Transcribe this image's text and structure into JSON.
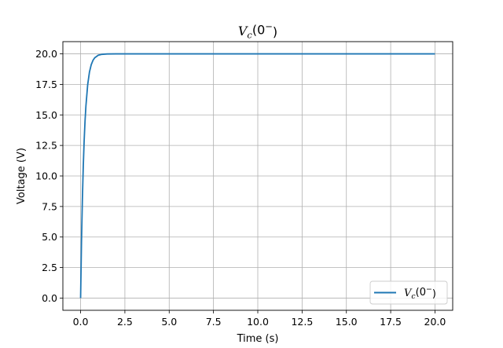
{
  "chart_data": {
    "type": "line",
    "title": "V_c(0^-)",
    "xlabel": "Time (s)",
    "ylabel": "Voltage (V)",
    "xlim": [
      -1.0,
      21.0
    ],
    "ylim": [
      -1.0,
      21.0
    ],
    "xticks": [
      0.0,
      2.5,
      5.0,
      7.5,
      10.0,
      12.5,
      15.0,
      17.5,
      20.0
    ],
    "xtick_labels": [
      "0.0",
      "2.5",
      "5.0",
      "7.5",
      "10.0",
      "12.5",
      "15.0",
      "17.5",
      "20.0"
    ],
    "yticks": [
      0.0,
      2.5,
      5.0,
      7.5,
      10.0,
      12.5,
      15.0,
      17.5,
      20.0
    ],
    "ytick_labels": [
      "0.0",
      "2.5",
      "5.0",
      "7.5",
      "10.0",
      "12.5",
      "15.0",
      "17.5",
      "20.0"
    ],
    "grid": true,
    "legend_position": "lower-right",
    "series": [
      {
        "name": "V_c(0^-)",
        "color": "#1f77b4",
        "x": [
          0.0,
          0.05,
          0.1,
          0.15,
          0.2,
          0.25,
          0.3,
          0.4,
          0.5,
          0.6,
          0.7,
          0.8,
          1.0,
          1.2,
          1.5,
          2.0,
          2.5,
          5.0,
          7.5,
          10.0,
          12.5,
          15.0,
          17.5,
          20.0
        ],
        "y": [
          0.0,
          4.53,
          8.04,
          10.75,
          12.85,
          14.47,
          15.72,
          17.47,
          18.51,
          19.11,
          19.47,
          19.68,
          19.89,
          19.96,
          19.99,
          20.0,
          20.0,
          20.0,
          20.0,
          20.0,
          20.0,
          20.0,
          20.0,
          20.0
        ]
      }
    ]
  }
}
